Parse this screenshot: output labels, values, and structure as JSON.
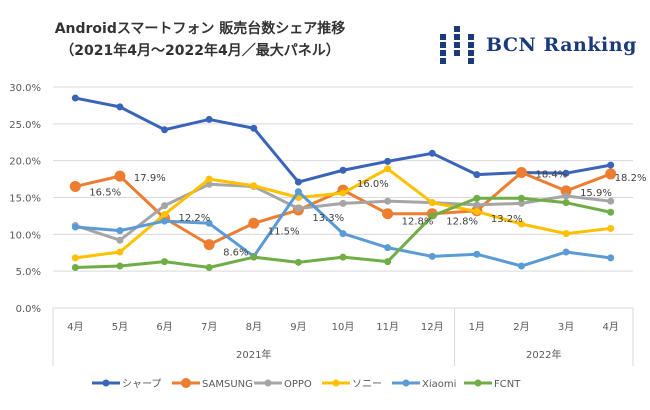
{
  "title": {
    "line1": "Androidスマートフォン 販売台数シェア推移",
    "line2": "（2021年4月～2022年4月／最大パネル）"
  },
  "logo": {
    "text": "BCN Ranking",
    "color": "#1a3a7a"
  },
  "chart_data": {
    "type": "line",
    "title": "Androidスマートフォン 販売台数シェア推移（2021年4月～2022年4月／最大パネル）",
    "xlabel": "",
    "ylabel": "",
    "categories": [
      "4月",
      "5月",
      "6月",
      "7月",
      "8月",
      "9月",
      "10月",
      "11月",
      "12月",
      "1月",
      "2月",
      "3月",
      "4月"
    ],
    "year_groups": [
      {
        "label": "2021年",
        "count": 9
      },
      {
        "label": "2022年",
        "count": 4
      }
    ],
    "y_ticks": [
      "0.0%",
      "5.0%",
      "10.0%",
      "15.0%",
      "20.0%",
      "25.0%",
      "30.0%"
    ],
    "ylim": [
      0,
      30
    ],
    "grid": true,
    "legend_position": "bottom",
    "series": [
      {
        "name": "シャープ",
        "color": "#3a64b8",
        "marker": "small",
        "values": [
          28.5,
          27.3,
          24.2,
          25.6,
          24.4,
          17.1,
          18.7,
          19.9,
          21.0,
          18.1,
          18.4,
          18.3,
          19.4
        ]
      },
      {
        "name": "SAMSUNG",
        "color": "#ed7d31",
        "marker": "large",
        "values": [
          16.5,
          17.9,
          12.2,
          8.6,
          11.5,
          13.3,
          16.0,
          12.8,
          12.8,
          13.2,
          18.4,
          15.9,
          18.2
        ],
        "labels": [
          "16.5%",
          "17.9%",
          "12.2%",
          "8.6%",
          "11.5%",
          "13.3%",
          "16.0%",
          "12.8%",
          "12.8%",
          "13.2%",
          "18.4%",
          "15.9%",
          "18.2%"
        ]
      },
      {
        "name": "OPPO",
        "color": "#a5a5a5",
        "marker": "small",
        "values": [
          11.2,
          9.2,
          13.9,
          16.8,
          16.5,
          13.5,
          14.2,
          14.5,
          14.3,
          14.0,
          14.2,
          15.2,
          14.5
        ]
      },
      {
        "name": "ソニー",
        "color": "#ffc000",
        "marker": "small",
        "values": [
          6.8,
          7.6,
          12.7,
          17.5,
          16.6,
          15.0,
          15.6,
          18.9,
          14.3,
          13.1,
          11.4,
          10.1,
          10.8
        ]
      },
      {
        "name": "Xiaomi",
        "color": "#5b9bd5",
        "marker": "small",
        "values": [
          11.0,
          10.5,
          11.8,
          11.5,
          7.0,
          15.8,
          10.1,
          8.2,
          7.0,
          7.3,
          5.7,
          7.6,
          6.8
        ]
      },
      {
        "name": "FCNT",
        "color": "#70ad47",
        "marker": "small",
        "values": [
          5.5,
          5.7,
          6.3,
          5.5,
          6.9,
          6.2,
          6.9,
          6.3,
          12.5,
          14.9,
          14.9,
          14.3,
          13.0
        ]
      }
    ]
  }
}
